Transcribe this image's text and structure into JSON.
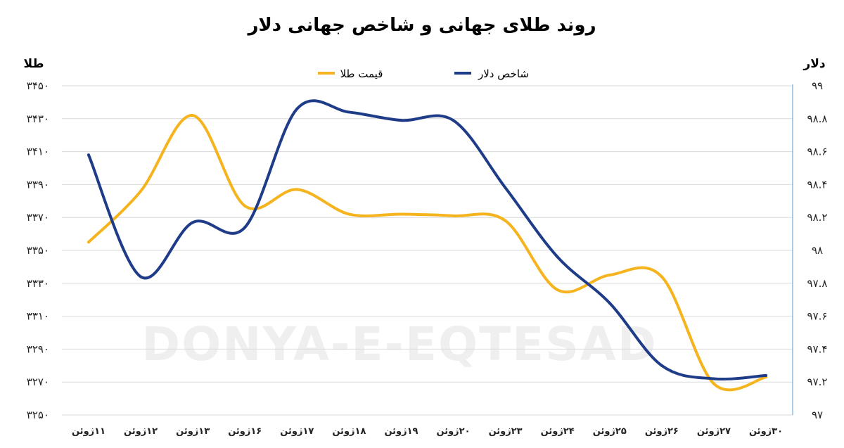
{
  "chart_data": {
    "type": "line",
    "title": "روند طلای جهانی و شاخص جهانی دلار",
    "categories": [
      "۱۱ژوئن",
      "۱۲ژوئن",
      "۱۳ژوئن",
      "۱۶ژوئن",
      "۱۷ژوئن",
      "۱۸ژوئن",
      "۱۹ژوئن",
      "۲۰ژوئن",
      "۲۳ژوئن",
      "۲۴ژوئن",
      "۲۵ژوئن",
      "۲۶ژوئن",
      "۲۷ژوئن",
      "۳۰ژوئن"
    ],
    "y_left": {
      "label": "طلا",
      "min": 3250,
      "max": 3450,
      "ticks": [
        3250,
        3270,
        3290,
        3310,
        3330,
        3350,
        3370,
        3390,
        3410,
        3430,
        3450
      ],
      "tick_labels": [
        "۳۲۵۰",
        "۳۲۷۰",
        "۳۲۹۰",
        "۳۳۱۰",
        "۳۳۳۰",
        "۳۳۵۰",
        "۳۳۷۰",
        "۳۳۹۰",
        "۳۴۱۰",
        "۳۴۳۰",
        "۳۴۵۰"
      ]
    },
    "y_right": {
      "label": "دلار",
      "min": 97,
      "max": 99,
      "ticks": [
        97,
        97.2,
        97.4,
        97.6,
        97.8,
        98,
        98.2,
        98.4,
        98.6,
        98.8,
        99
      ],
      "tick_labels": [
        "۹۷",
        "۹۷.۲",
        "۹۷.۴",
        "۹۷.۶",
        "۹۷.۸",
        "۹۸",
        "۹۸.۲",
        "۹۸.۴",
        "۹۸.۶",
        "۹۸.۸",
        "۹۹"
      ]
    },
    "grid": true,
    "legend": "top-center",
    "series": [
      {
        "name": "قیمت طلا",
        "axis": "left",
        "color": "#F5B41E",
        "values": [
          3355,
          3386,
          3432,
          3377,
          3387,
          3372,
          3372,
          3371,
          3368,
          3326,
          3335,
          3334,
          3269,
          3273
        ]
      },
      {
        "name": "شاخص دلار",
        "axis": "right",
        "color": "#1F3C88",
        "values": [
          98.58,
          97.84,
          98.17,
          98.14,
          98.86,
          98.84,
          98.79,
          98.79,
          98.38,
          97.96,
          97.68,
          97.3,
          97.22,
          97.24
        ]
      }
    ]
  },
  "watermark": {
    "text": "DONYA-E-EQTESAD"
  }
}
